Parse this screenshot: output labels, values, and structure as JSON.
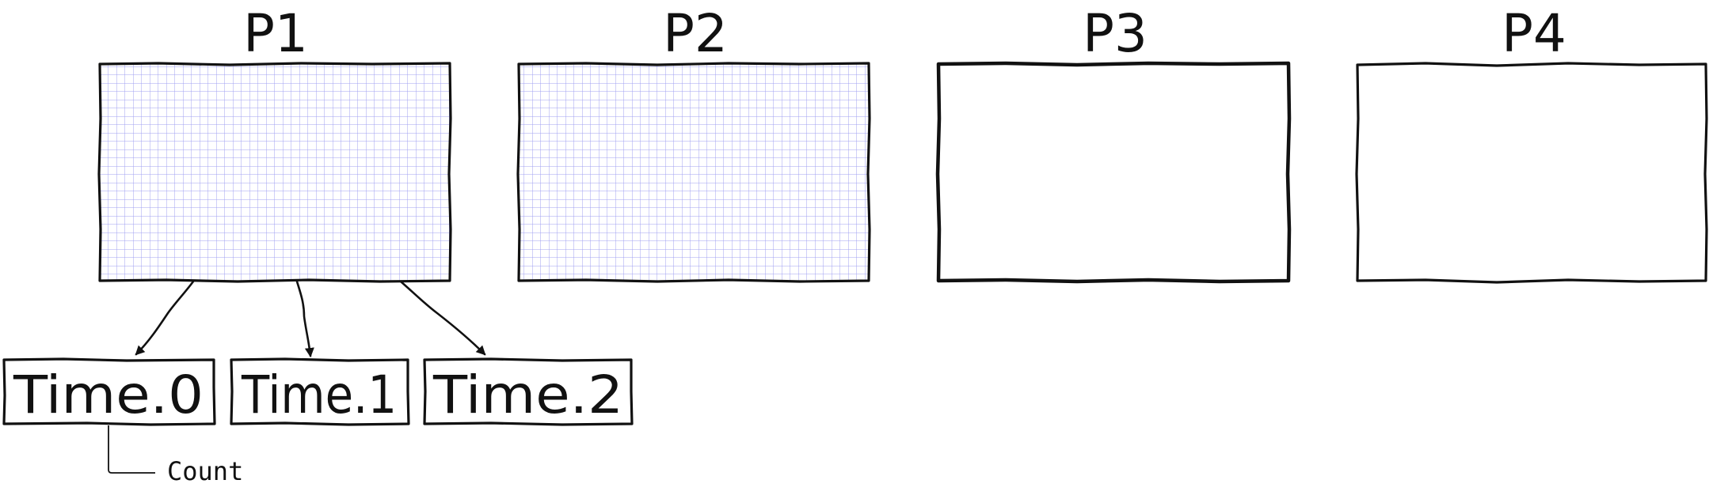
{
  "panels": [
    {
      "label": "P1",
      "grid": true
    },
    {
      "label": "P2",
      "grid": true
    },
    {
      "label": "P3",
      "grid": false
    },
    {
      "label": "P4",
      "grid": false
    }
  ],
  "time_boxes": [
    {
      "label": "Time.0"
    },
    {
      "label": "Time.1"
    },
    {
      "label": "Time.2"
    }
  ],
  "annotation": {
    "label": "Count"
  },
  "colors": {
    "grid_line": "#8f8ff0",
    "ink": "#111111",
    "background": "#ffffff"
  }
}
